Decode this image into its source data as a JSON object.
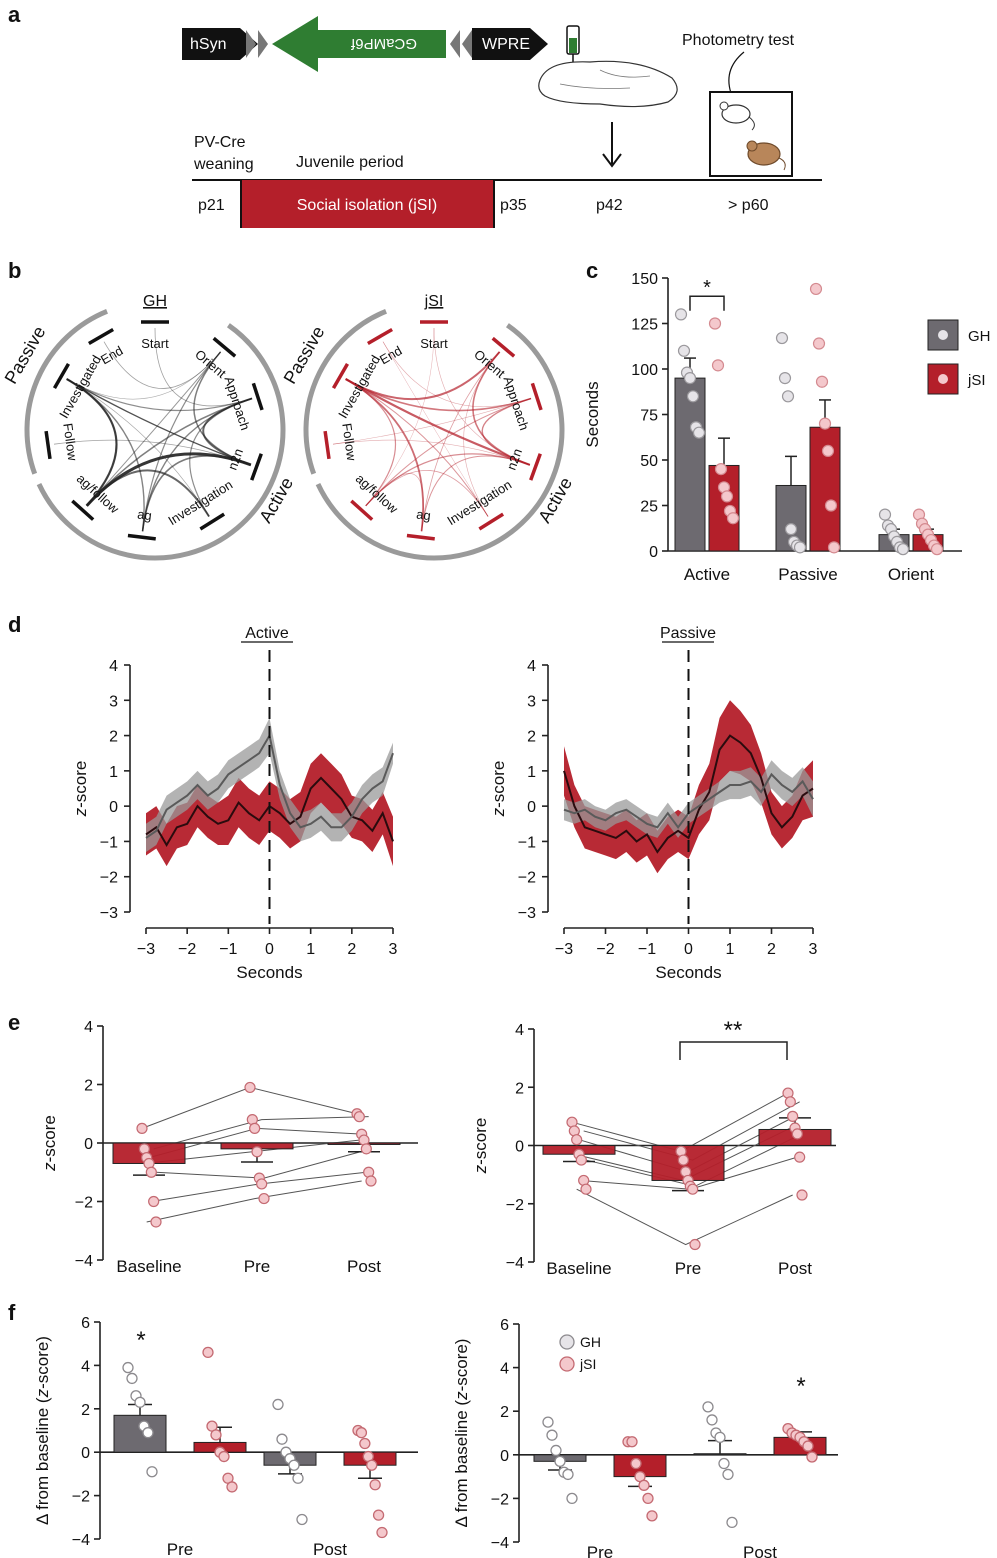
{
  "panel_labels": [
    "a",
    "b",
    "c",
    "d",
    "e",
    "f"
  ],
  "panel_a": {
    "construct": {
      "promoter": "hSyn",
      "gene": "GCaMP6f",
      "element": "WPRE"
    },
    "photometry_label": "Photometry test",
    "strain_label_1": "PV-Cre",
    "strain_label_2": "weaning",
    "juvenile_label": "Juvenile period",
    "isolation_label": "Social isolation (jSI)",
    "timepoints": [
      "p21",
      "p35",
      "p42",
      "> p60"
    ],
    "colors": {
      "construct_arrow": "#2f7d32",
      "isolation_box": "#b41f2a"
    }
  },
  "panel_b": {
    "left_title": "GH",
    "right_title": "jSI",
    "node_labels": [
      "Start",
      "Orient",
      "Approach",
      "n2n",
      "Investigation",
      "ag",
      "ag/follow",
      "Follow",
      "Investigated",
      "End"
    ],
    "group_labels": {
      "passive": "Passive",
      "active": "Active"
    },
    "colors": {
      "GH": "#222222",
      "jSI": "#b41f2a"
    }
  },
  "chart_data": [
    {
      "id": "c",
      "type": "bar",
      "ylabel": "Seconds",
      "ylim": [
        0,
        150
      ],
      "yticks": [
        0,
        25,
        50,
        75,
        100,
        125,
        150
      ],
      "categories": [
        "Active",
        "Passive",
        "Orient"
      ],
      "series": [
        {
          "name": "GH",
          "color": "#6d6a70",
          "values": [
            95,
            36,
            9
          ],
          "sem": [
            11,
            16,
            3
          ],
          "points": [
            [
              130,
              110,
              98,
              95,
              85,
              68,
              65
            ],
            [
              117,
              95,
              85,
              12,
              5,
              3,
              2
            ],
            [
              20,
              14,
              12,
              8,
              5,
              2,
              1
            ]
          ]
        },
        {
          "name": "jSI",
          "color": "#b41f2a",
          "values": [
            47,
            68,
            9
          ],
          "sem": [
            15,
            15,
            3
          ],
          "points": [
            [
              125,
              102,
              45,
              35,
              30,
              22,
              18
            ],
            [
              144,
              114,
              93,
              70,
              55,
              25,
              2
            ],
            [
              20,
              15,
              12,
              9,
              6,
              3,
              1
            ]
          ]
        }
      ],
      "annotations": [
        "*"
      ],
      "legend": [
        "GH",
        "jSI"
      ]
    },
    {
      "id": "d-active",
      "type": "line",
      "title": "Active",
      "xlabel": "Seconds",
      "ylabel": "z-score",
      "xlim": [
        -3,
        3
      ],
      "ylim": [
        -3,
        4
      ],
      "xticks": [
        -3,
        -2,
        -1,
        0,
        1,
        2,
        3
      ],
      "yticks": [
        -3,
        -2,
        -1,
        0,
        1,
        2,
        3,
        4
      ],
      "x": [
        -3,
        -2.75,
        -2.5,
        -2.25,
        -2,
        -1.75,
        -1.5,
        -1.25,
        -1,
        -0.75,
        -0.5,
        -0.25,
        0,
        0.25,
        0.5,
        0.75,
        1,
        1.25,
        1.5,
        1.75,
        2,
        2.25,
        2.5,
        2.75,
        3
      ],
      "series": [
        {
          "name": "GH",
          "color": "#666666",
          "values": [
            -0.9,
            -0.7,
            -0.1,
            0.1,
            0.3,
            0.6,
            0.3,
            0.5,
            0.9,
            1.1,
            1.3,
            1.5,
            2.0,
            0.6,
            -0.2,
            -0.6,
            -0.5,
            -0.3,
            -0.6,
            -0.6,
            -0.3,
            0.2,
            0.5,
            0.7,
            1.5
          ],
          "sem": [
            0.4,
            0.4,
            0.4,
            0.4,
            0.4,
            0.4,
            0.4,
            0.4,
            0.4,
            0.4,
            0.4,
            0.4,
            0.5,
            0.4,
            0.4,
            0.4,
            0.4,
            0.4,
            0.4,
            0.4,
            0.4,
            0.4,
            0.4,
            0.4,
            0.3
          ]
        },
        {
          "name": "jSI",
          "color": "#b41f2a",
          "values": [
            -0.8,
            -0.6,
            -1.1,
            -0.6,
            -0.5,
            0.0,
            -0.3,
            -0.5,
            -0.4,
            0.1,
            -0.2,
            -0.4,
            0.0,
            -0.2,
            -0.5,
            -0.3,
            0.5,
            0.8,
            0.5,
            0.2,
            -0.3,
            -0.4,
            -0.7,
            -0.2,
            -1.0
          ],
          "sem": [
            0.6,
            0.6,
            0.6,
            0.6,
            0.6,
            0.6,
            0.6,
            0.6,
            0.7,
            0.7,
            0.7,
            0.7,
            0.7,
            0.7,
            0.7,
            0.7,
            0.7,
            0.7,
            0.7,
            0.7,
            0.6,
            0.6,
            0.6,
            0.6,
            0.7
          ]
        }
      ]
    },
    {
      "id": "d-passive",
      "type": "line",
      "title": "Passive",
      "xlabel": "Seconds",
      "ylabel": "z-score",
      "xlim": [
        -3,
        3
      ],
      "ylim": [
        -3,
        4
      ],
      "xticks": [
        -3,
        -2,
        -1,
        0,
        1,
        2,
        3
      ],
      "yticks": [
        -3,
        -2,
        -1,
        0,
        1,
        2,
        3,
        4
      ],
      "x": [
        -3,
        -2.75,
        -2.5,
        -2.25,
        -2,
        -1.75,
        -1.5,
        -1.25,
        -1,
        -0.75,
        -0.5,
        -0.25,
        0,
        0.25,
        0.5,
        0.75,
        1,
        1.25,
        1.5,
        1.75,
        2,
        2.25,
        2.5,
        2.75,
        3
      ],
      "series": [
        {
          "name": "GH",
          "color": "#666666",
          "values": [
            -0.1,
            -0.2,
            -0.1,
            -0.3,
            -0.4,
            -0.2,
            -0.1,
            -0.3,
            -0.5,
            -0.6,
            -0.2,
            -0.6,
            -0.2,
            0.0,
            0.2,
            0.4,
            0.6,
            0.6,
            0.7,
            0.4,
            0.9,
            0.6,
            0.4,
            0.7,
            0.2
          ],
          "sem": [
            0.3,
            0.3,
            0.3,
            0.3,
            0.3,
            0.3,
            0.3,
            0.3,
            0.3,
            0.3,
            0.3,
            0.3,
            0.3,
            0.3,
            0.3,
            0.3,
            0.4,
            0.4,
            0.4,
            0.4,
            0.4,
            0.4,
            0.4,
            0.4,
            0.5
          ]
        },
        {
          "name": "jSI",
          "color": "#b41f2a",
          "values": [
            1.0,
            0.0,
            -0.6,
            -0.7,
            -0.8,
            -0.9,
            -0.7,
            -1.0,
            -0.8,
            -1.3,
            -0.9,
            -0.7,
            -0.9,
            -0.1,
            0.4,
            1.6,
            2.0,
            1.8,
            1.5,
            0.8,
            -0.2,
            -0.6,
            -0.3,
            0.3,
            0.5
          ],
          "sem": [
            0.7,
            0.6,
            0.6,
            0.6,
            0.6,
            0.6,
            0.6,
            0.6,
            0.6,
            0.6,
            0.6,
            0.6,
            0.6,
            0.7,
            0.8,
            0.9,
            1.0,
            0.9,
            0.8,
            0.7,
            0.6,
            0.6,
            0.6,
            0.7,
            0.8
          ]
        }
      ]
    },
    {
      "id": "e-active",
      "type": "bar",
      "ylabel": "z-score",
      "ylim": [
        -4,
        4
      ],
      "yticks": [
        -4,
        -2,
        0,
        2,
        4
      ],
      "categories": [
        "Baseline",
        "Pre",
        "Post"
      ],
      "values": [
        -0.7,
        -0.2,
        -0.05
      ],
      "sem": [
        0.4,
        0.45,
        0.25
      ],
      "points": [
        [
          0.5,
          -0.2,
          -0.5,
          -0.7,
          -1.0,
          -2.0,
          -2.7
        ],
        [
          1.9,
          0.8,
          0.5,
          -0.3,
          -1.2,
          -1.4,
          -1.9
        ],
        [
          1.0,
          0.9,
          0.3,
          0.1,
          -0.2,
          -1.0,
          -1.3
        ]
      ],
      "color": "#b41f2a"
    },
    {
      "id": "e-passive",
      "type": "bar",
      "ylabel": "z-score",
      "ylim": [
        -4,
        4
      ],
      "yticks": [
        -4,
        -2,
        0,
        2,
        4
      ],
      "categories": [
        "Baseline",
        "Pre",
        "Post"
      ],
      "values": [
        -0.3,
        -1.2,
        0.55
      ],
      "sem": [
        0.25,
        0.35,
        0.4
      ],
      "points": [
        [
          0.8,
          0.5,
          0.2,
          -0.3,
          -0.5,
          -1.2,
          -1.5
        ],
        [
          -0.2,
          -0.5,
          -0.9,
          -1.2,
          -1.4,
          -1.5,
          -3.4
        ],
        [
          1.8,
          1.5,
          1.0,
          0.6,
          0.4,
          -0.4,
          -1.7
        ]
      ],
      "color": "#b41f2a",
      "annotations": [
        "**"
      ]
    },
    {
      "id": "f-active",
      "type": "bar",
      "ylabel": "Δ from baseline (z-score)",
      "ylim": [
        -4,
        6
      ],
      "yticks": [
        -4,
        -2,
        0,
        2,
        4,
        6
      ],
      "categories": [
        "Pre",
        "Post"
      ],
      "series": [
        {
          "name": "GH",
          "color": "#6d6a70",
          "values": [
            1.7,
            -0.6
          ],
          "sem": [
            0.5,
            0.4
          ],
          "points": [
            [
              3.9,
              3.4,
              2.6,
              2.3,
              1.2,
              0.9,
              -0.9
            ],
            [
              2.2,
              0.6,
              0.0,
              -0.3,
              -0.6,
              -1.2,
              -3.1
            ]
          ]
        },
        {
          "name": "jSI",
          "color": "#b41f2a",
          "values": [
            0.45,
            -0.6
          ],
          "sem": [
            0.7,
            0.6
          ],
          "points": [
            [
              4.6,
              1.2,
              0.8,
              0.0,
              -0.2,
              -1.2,
              -1.6
            ],
            [
              1.0,
              0.9,
              0.4,
              -0.2,
              -0.6,
              -1.5,
              -2.9,
              -3.7
            ]
          ]
        }
      ],
      "annotations": [
        "*"
      ]
    },
    {
      "id": "f-passive",
      "type": "bar",
      "ylabel": "Δ from baseline (z-score)",
      "ylim": [
        -4,
        6
      ],
      "yticks": [
        -4,
        -2,
        0,
        2,
        4,
        6
      ],
      "categories": [
        "Pre",
        "Post"
      ],
      "series": [
        {
          "name": "GH",
          "color": "#6d6a70",
          "values": [
            -0.3,
            0.05
          ],
          "sem": [
            0.4,
            0.6
          ],
          "points": [
            [
              1.5,
              0.9,
              0.2,
              -0.3,
              -0.8,
              -0.9,
              -2.0
            ],
            [
              2.2,
              1.6,
              1.0,
              0.8,
              -0.4,
              -0.9,
              -3.1
            ]
          ]
        },
        {
          "name": "jSI",
          "color": "#b41f2a",
          "values": [
            -1.0,
            0.8
          ],
          "sem": [
            0.45,
            0.25
          ],
          "points": [
            [
              0.6,
              0.6,
              -0.4,
              -1.0,
              -1.4,
              -2.0,
              -2.8
            ],
            [
              1.2,
              1.0,
              0.9,
              0.8,
              0.6,
              0.4,
              -0.1
            ]
          ]
        }
      ],
      "legend": [
        "GH",
        "jSI"
      ],
      "annotations": [
        "*"
      ]
    }
  ]
}
